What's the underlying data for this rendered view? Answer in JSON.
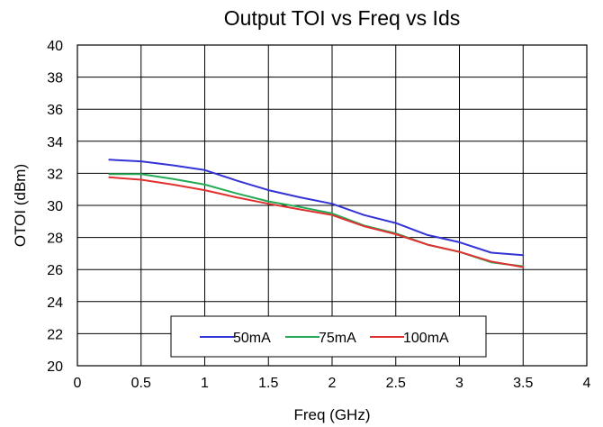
{
  "chart_data": {
    "type": "line",
    "title": "Output TOI vs Freq vs Ids",
    "xlabel": "Freq (GHz)",
    "ylabel": "OTOI (dBm)",
    "xlim": [
      0,
      4
    ],
    "ylim": [
      20,
      40
    ],
    "xticks": [
      "0",
      "0.5",
      "1",
      "1.5",
      "2",
      "2.5",
      "3",
      "3.5",
      "4"
    ],
    "yticks": [
      "20",
      "22",
      "24",
      "26",
      "28",
      "30",
      "32",
      "34",
      "36",
      "38",
      "40"
    ],
    "grid": true,
    "legend_position": "bottom-center",
    "x": [
      0.25,
      0.5,
      0.75,
      1.0,
      1.25,
      1.5,
      1.75,
      2.0,
      2.25,
      2.5,
      2.75,
      3.0,
      3.25,
      3.5
    ],
    "series": [
      {
        "name": "50mA",
        "color": "#3333d6",
        "values": [
          32.85,
          32.75,
          32.5,
          32.2,
          31.55,
          30.95,
          30.5,
          30.1,
          29.4,
          28.9,
          28.15,
          27.7,
          27.05,
          26.9
        ]
      },
      {
        "name": "75mA",
        "color": "#22aa55",
        "values": [
          31.95,
          31.95,
          31.65,
          31.3,
          30.75,
          30.25,
          29.9,
          29.5,
          28.75,
          28.25,
          27.55,
          27.1,
          26.45,
          26.2
        ]
      },
      {
        "name": "100mA",
        "color": "#e03030",
        "values": [
          31.75,
          31.6,
          31.3,
          30.95,
          30.5,
          30.1,
          29.75,
          29.4,
          28.7,
          28.2,
          27.55,
          27.1,
          26.5,
          26.15
        ]
      }
    ]
  }
}
